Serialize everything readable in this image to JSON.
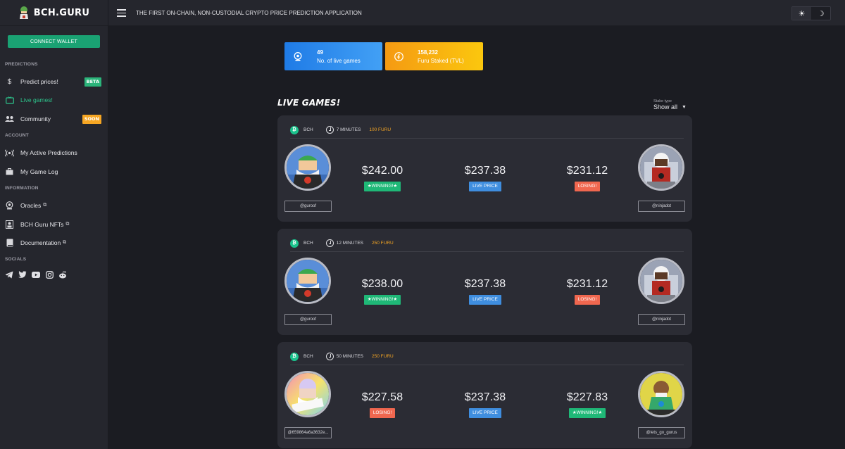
{
  "brand": {
    "name": "BCH.GURU"
  },
  "topbar": {
    "tagline": "THE FIRST ON-CHAIN, NON-CUSTODIAL CRYPTO PRICE PREDICTION APPLICATION",
    "light_icon": "sun-icon",
    "dark_icon": "moon-icon"
  },
  "sidebar": {
    "connect_label": "CONNECT WALLET",
    "sections": {
      "predictions": "PREDICTIONS",
      "account": "ACCOUNT",
      "information": "INFORMATION",
      "socials": "SOCIALS"
    },
    "items": {
      "predict": {
        "label": "Predict prices!",
        "badge": "BETA"
      },
      "live": {
        "label": "Live games!"
      },
      "community": {
        "label": "Community",
        "badge": "SOON"
      },
      "active": {
        "label": "My Active Predictions"
      },
      "gamelog": {
        "label": "My Game Log"
      },
      "oracles": {
        "label": "Oracles"
      },
      "nfts": {
        "label": "BCH Guru NFTs"
      },
      "docs": {
        "label": "Documentation"
      }
    },
    "social_icons": [
      "telegram-icon",
      "twitter-icon",
      "youtube-icon",
      "instagram-icon",
      "reddit-icon"
    ]
  },
  "stats": {
    "live_games": {
      "value": "49",
      "label": "No. of live games"
    },
    "staked": {
      "value": "158,232",
      "label": "Furu Staked (TVL)"
    }
  },
  "live_games": {
    "title": "LIVE GAMES!",
    "stake_type_label": "Stake type",
    "stake_type_value": "Show all"
  },
  "games": [
    {
      "coin": "BCH",
      "duration": "7 MINUTES",
      "stake": "100 FURU",
      "left_price": "$242.00",
      "left_status": "★WINNING!★",
      "live_price": "$237.38",
      "live_label": "LIVE PRICE",
      "right_price": "$231.12",
      "right_status": "LOSING!",
      "left_handle": "@guroof",
      "right_handle": "@ninjadot"
    },
    {
      "coin": "BCH",
      "duration": "12 MINUTES",
      "stake": "250 FURU",
      "left_price": "$238.00",
      "left_status": "★WINNING!★",
      "live_price": "$237.38",
      "live_label": "LIVE PRICE",
      "right_price": "$231.12",
      "right_status": "LOSING!",
      "left_handle": "@guroof",
      "right_handle": "@ninjadot"
    },
    {
      "coin": "BCH",
      "duration": "50 MINUTES",
      "stake": "250 FURU",
      "left_price": "$227.58",
      "left_status": "LOSING!",
      "live_price": "$237.38",
      "live_label": "LIVE PRICE",
      "right_price": "$227.83",
      "right_status": "★WINNING!★",
      "left_handle": "@659864a6a3632e...",
      "right_handle": "@lets_go_gurus"
    }
  ],
  "colors": {
    "accent_green": "#1aa273",
    "winning": "#1fb877",
    "losing": "#f0674f",
    "live": "#3f8edf",
    "stake": "#f5a623"
  }
}
